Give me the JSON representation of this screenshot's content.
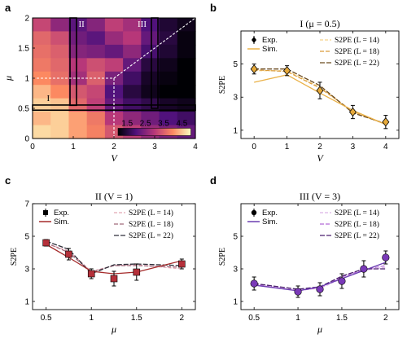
{
  "chart_data": [
    {
      "panel": "a",
      "type": "heatmap",
      "xlabel": "V",
      "ylabel": "μ",
      "xlim": [
        0,
        4
      ],
      "ylim": [
        0,
        2
      ],
      "xticks": [
        "0",
        "1",
        "2",
        "3",
        "4"
      ],
      "yticks": [
        "0",
        "0.5",
        "1",
        "1.5",
        "2"
      ],
      "colorbar": {
        "ticks": [
          "1.5",
          "2.5",
          "3.5",
          "4.5"
        ],
        "range": [
          1,
          5
        ]
      },
      "regions": [
        "I",
        "II",
        "III"
      ],
      "x": [
        0,
        0.5,
        1,
        1.5,
        2,
        2.5,
        3,
        3.5,
        4
      ],
      "y": [
        2,
        1.75,
        1.5,
        1.25,
        1,
        0.75,
        0.5,
        0.25,
        0
      ],
      "z": [
        [
          3.2,
          2.6,
          2.1,
          2.5,
          3.1,
          2.8,
          2.0,
          1.4,
          1.2
        ],
        [
          3.6,
          3.3,
          2.3,
          2.1,
          2.7,
          3.0,
          2.2,
          1.5,
          1.1
        ],
        [
          3.7,
          3.5,
          2.5,
          2.4,
          2.2,
          2.6,
          1.9,
          1.4,
          1.1
        ],
        [
          3.8,
          3.6,
          3.0,
          3.3,
          3.1,
          2.2,
          1.5,
          1.2,
          1.0
        ],
        [
          4.0,
          3.7,
          2.8,
          3.5,
          2.4,
          1.8,
          1.3,
          1.1,
          1.0
        ],
        [
          4.4,
          4.0,
          3.4,
          3.2,
          2.0,
          1.5,
          1.2,
          1.0,
          1.0
        ],
        [
          4.6,
          4.5,
          3.6,
          3.1,
          2.2,
          1.8,
          1.6,
          1.3,
          1.2
        ],
        [
          4.4,
          4.6,
          4.2,
          3.8,
          3.0,
          2.6,
          2.3,
          2.0,
          1.8
        ],
        [
          4.7,
          4.6,
          4.2,
          3.9,
          3.4,
          3.1,
          2.7,
          2.4,
          2.2
        ]
      ]
    },
    {
      "panel": "b",
      "type": "line",
      "title": "I (μ = 0.5)",
      "xlabel": "V",
      "ylabel": "S2PE",
      "xlim": [
        -0.4,
        4.4
      ],
      "ylim": [
        0.5,
        7
      ],
      "xticks": [
        "0",
        "1",
        "2",
        "3",
        "4"
      ],
      "yticks": [
        "1",
        "3",
        "5"
      ],
      "legend": {
        "exp": "Exp.",
        "sim": "Sim.",
        "series_labels": [
          "S2PE (L = 14)",
          "S2PE (L = 18)",
          "S2PE (L = 22)"
        ]
      },
      "x": [
        0,
        1,
        2,
        3,
        4
      ],
      "exp": {
        "values": [
          4.7,
          4.6,
          3.4,
          2.1,
          1.5
        ],
        "errors": [
          0.3,
          0.3,
          0.5,
          0.4,
          0.4
        ]
      },
      "sim": [
        3.9,
        4.35,
        3.25,
        2.2,
        1.35
      ],
      "series": [
        {
          "values": [
            4.6,
            4.6,
            3.6,
            2.1,
            1.35
          ]
        },
        {
          "values": [
            4.65,
            4.55,
            3.55,
            2.15,
            1.35
          ]
        },
        {
          "values": [
            4.7,
            4.7,
            3.7,
            2.05,
            1.4
          ]
        }
      ]
    },
    {
      "panel": "c",
      "type": "line",
      "title": "II (V = 1)",
      "xlabel": "μ",
      "ylabel": "S2PE",
      "xlim": [
        0.35,
        2.15
      ],
      "ylim": [
        0.5,
        7
      ],
      "xticks": [
        "0.5",
        "1",
        "1.5",
        "2"
      ],
      "yticks": [
        "1",
        "3",
        "5",
        "7"
      ],
      "legend": {
        "exp": "Exp.",
        "sim": "Sim.",
        "series_labels": [
          "S2PE (L = 14)",
          "S2PE (L = 18)",
          "S2PE (L = 22)"
        ]
      },
      "x": [
        0.5,
        0.75,
        1,
        1.25,
        1.5,
        2
      ],
      "exp": {
        "values": [
          4.6,
          3.9,
          2.7,
          2.4,
          2.8,
          3.3
        ],
        "errors": [
          0.2,
          0.35,
          0.3,
          0.45,
          0.5,
          0.3
        ]
      },
      "sim": [
        4.5,
        3.7,
        2.85,
        2.7,
        2.8,
        3.5
      ],
      "series": [
        {
          "values": [
            4.55,
            4.1,
            2.85,
            3.2,
            3.25,
            3.0
          ]
        },
        {
          "values": [
            4.6,
            4.0,
            2.8,
            3.2,
            3.2,
            3.1
          ]
        },
        {
          "values": [
            4.7,
            4.2,
            2.7,
            3.25,
            3.3,
            3.2
          ]
        }
      ]
    },
    {
      "panel": "d",
      "type": "line",
      "title": "III (V = 3)",
      "xlabel": "μ",
      "ylabel": "S2PE",
      "xlim": [
        0.35,
        2.15
      ],
      "ylim": [
        0.5,
        7
      ],
      "xticks": [
        "0.5",
        "1",
        "1.5",
        "2"
      ],
      "yticks": [
        "1",
        "3",
        "5"
      ],
      "legend": {
        "exp": "Exp.",
        "sim": "Sim.",
        "series_labels": [
          "S2PE (L = 14)",
          "S2PE (L = 18)",
          "S2PE (L = 22)"
        ]
      },
      "x": [
        0.5,
        1,
        1.25,
        1.5,
        1.75,
        2
      ],
      "exp": {
        "values": [
          2.1,
          1.6,
          1.75,
          2.25,
          3.0,
          3.7
        ],
        "errors": [
          0.4,
          0.35,
          0.4,
          0.45,
          0.5,
          0.4
        ]
      },
      "sim": [
        2.0,
        1.65,
        1.9,
        2.4,
        2.9,
        3.4
      ],
      "series": [
        {
          "values": [
            2.0,
            1.7,
            1.8,
            2.4,
            2.9,
            3.1
          ]
        },
        {
          "values": [
            2.05,
            1.65,
            1.85,
            2.5,
            2.95,
            3.2
          ]
        },
        {
          "values": [
            2.1,
            1.75,
            1.9,
            2.55,
            3.0,
            3.0
          ]
        }
      ]
    }
  ],
  "colors": {
    "b": {
      "exp": "#e6a93a",
      "sim": "#eab24a",
      "series": [
        "#f5d38a",
        "#d99a3a",
        "#6b4a1f"
      ]
    },
    "c": {
      "exp": "#b5303a",
      "sim": "#a52a2a",
      "series": [
        "#e2a7b4",
        "#a06a7c",
        "#2f2f3a"
      ]
    },
    "d": {
      "exp": "#7a3ab8",
      "sim": "#6a3db0",
      "series": [
        "#dcb4e8",
        "#b46ad6",
        "#4a1f6e"
      ]
    }
  }
}
